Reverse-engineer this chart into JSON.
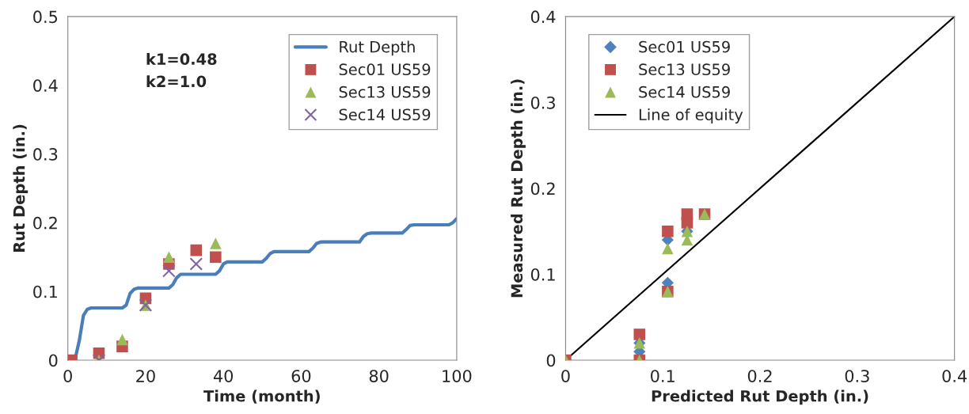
{
  "chart_data": [
    {
      "type": "line",
      "xlabel": "Time (month)",
      "ylabel": "Rut Depth (in.)",
      "xlim": [
        0,
        100
      ],
      "xticks": [
        0,
        20,
        40,
        60,
        80,
        100
      ],
      "ylim": [
        0,
        0.5
      ],
      "yticks": [
        0,
        0.1,
        0.2,
        0.3,
        0.4,
        0.5
      ],
      "grid": false,
      "legend": "top right",
      "annotations": [
        "k1=0.48",
        "k2=1.0"
      ],
      "series": [
        {
          "name": "Rut Depth",
          "color": "#4a7ebb",
          "marker": "none",
          "line_style": "solid",
          "x": [
            1,
            2,
            3,
            4,
            5,
            6,
            14,
            15,
            16,
            17,
            18,
            26,
            27,
            28,
            29,
            38,
            39,
            40,
            41,
            50,
            51,
            52,
            53,
            62,
            63,
            64,
            65,
            75,
            76,
            77,
            78,
            86,
            87,
            88,
            89,
            98,
            99,
            100
          ],
          "values": [
            0,
            0.005,
            0.03,
            0.065,
            0.074,
            0.076,
            0.076,
            0.08,
            0.097,
            0.103,
            0.105,
            0.105,
            0.11,
            0.12,
            0.125,
            0.125,
            0.13,
            0.14,
            0.143,
            0.143,
            0.148,
            0.155,
            0.158,
            0.158,
            0.163,
            0.17,
            0.172,
            0.172,
            0.18,
            0.184,
            0.185,
            0.185,
            0.19,
            0.196,
            0.197,
            0.197,
            0.2,
            0.206
          ]
        },
        {
          "name": "Sec01 US59",
          "type": "scatter",
          "color": "#c0504d",
          "marker": "square",
          "x": [
            1,
            8,
            14,
            20,
            26,
            33,
            38
          ],
          "values": [
            0,
            0.01,
            0.02,
            0.09,
            0.14,
            0.16,
            0.15
          ]
        },
        {
          "name": "Sec13 US59",
          "type": "scatter",
          "color": "#9bbb59",
          "marker": "triangle",
          "x": [
            8,
            14,
            20,
            26,
            38
          ],
          "values": [
            0,
            0.03,
            0.08,
            0.15,
            0.17
          ]
        },
        {
          "name": "Sec14 US59",
          "type": "scatter",
          "color": "#8064a2",
          "marker": "cross",
          "x": [
            8,
            20,
            26,
            33
          ],
          "values": [
            0,
            0.08,
            0.13,
            0.14
          ]
        }
      ]
    },
    {
      "type": "scatter",
      "xlabel": "Predicted Rut Depth (in.)",
      "ylabel": "Measured Rut Depth (in.)",
      "xlim": [
        0,
        0.4
      ],
      "xticks": [
        0,
        0.1,
        0.2,
        0.3,
        0.4
      ],
      "ylim": [
        0,
        0.4
      ],
      "yticks": [
        0,
        0.1,
        0.2,
        0.3,
        0.4
      ],
      "grid": false,
      "legend": "top left",
      "series": [
        {
          "name": "Sec01 US59",
          "color": "#4f81bd",
          "marker": "diamond",
          "x": [
            0.076,
            0.076,
            0.105,
            0.105,
            0.125
          ],
          "values": [
            0.01,
            0.02,
            0.09,
            0.14,
            0.15
          ]
        },
        {
          "name": "Sec13 US59",
          "color": "#c0504d",
          "marker": "square",
          "x": [
            0,
            0.076,
            0.076,
            0.105,
            0.105,
            0.125,
            0.125,
            0.143
          ],
          "values": [
            0,
            0,
            0.03,
            0.08,
            0.15,
            0.16,
            0.17,
            0.17
          ]
        },
        {
          "name": "Sec14 US59",
          "color": "#9bbb59",
          "marker": "triangle",
          "x": [
            0,
            0.076,
            0.076,
            0.105,
            0.105,
            0.125,
            0.125,
            0.143
          ],
          "values": [
            0,
            0,
            0.02,
            0.08,
            0.13,
            0.14,
            0.15,
            0.17
          ]
        },
        {
          "name": "Line of equity",
          "type": "line",
          "color": "#000000",
          "marker": "none",
          "line_style": "solid",
          "x": [
            0,
            0.4
          ],
          "values": [
            0,
            0.4
          ]
        }
      ]
    }
  ]
}
